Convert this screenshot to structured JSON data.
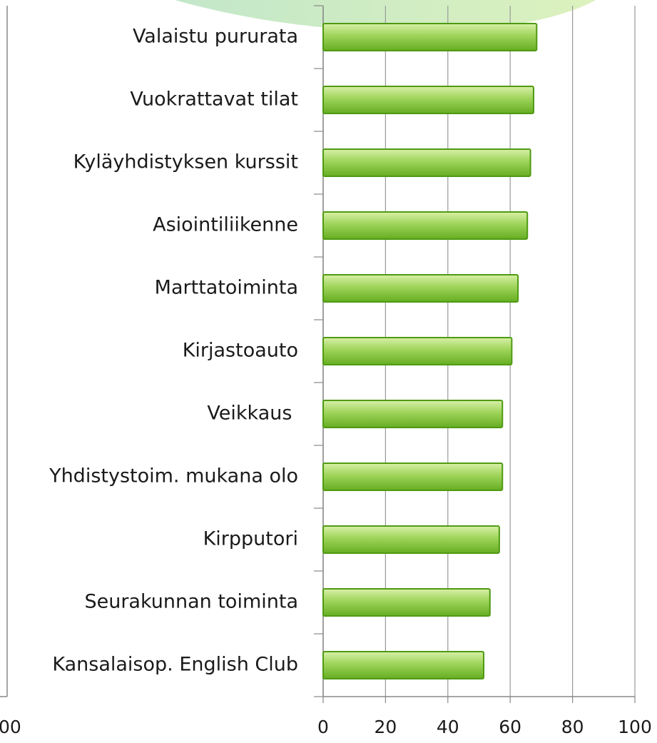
{
  "chart_data": {
    "type": "bar",
    "orientation": "horizontal",
    "categories": [
      "Valaistu pururata",
      "Vuokrattavat tilat",
      "Kyläyhdistyksen kurssit",
      "Asiointiliikenne",
      "Marttatoiminta",
      "Kirjastoauto",
      "Veikkaus ",
      "Yhdistystoim. mukana olo",
      "Kirpputori",
      "Seurakunnan toiminta",
      "Kansalaisop. English Club"
    ],
    "values": [
      68.5,
      67.5,
      66.5,
      65.5,
      62.5,
      60.5,
      57.5,
      57.5,
      56.5,
      53.5,
      51.5
    ],
    "color": "#7cc033",
    "xlim": [
      0,
      100
    ],
    "xticks": [
      0,
      20,
      40,
      60,
      80,
      100
    ],
    "grid": true,
    "clipped_axis_label": "00"
  }
}
